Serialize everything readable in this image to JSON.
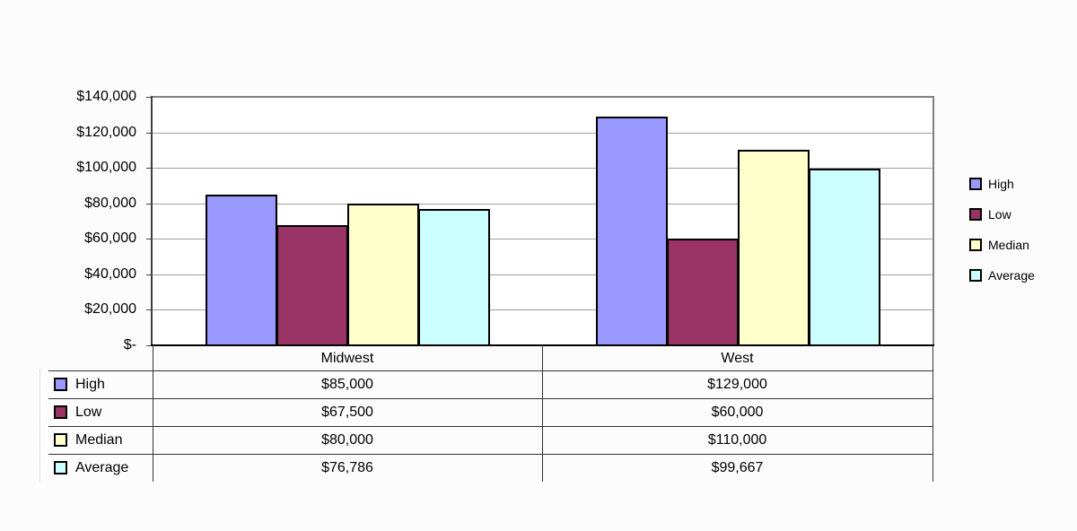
{
  "chart_data": {
    "type": "bar",
    "title": "",
    "categories": [
      "Midwest",
      "West"
    ],
    "series": [
      {
        "name": "High",
        "values": [
          85000,
          129000
        ],
        "labels": [
          "$85,000",
          "$129,000"
        ],
        "color": "#9999FF",
        "pattern": "none"
      },
      {
        "name": "Low",
        "values": [
          67500,
          60000
        ],
        "labels": [
          "$67,500",
          "$60,000"
        ],
        "color": "#993366",
        "pattern": "dots"
      },
      {
        "name": "Median",
        "values": [
          80000,
          110000
        ],
        "labels": [
          "$80,000",
          "$110,000"
        ],
        "color": "#FFFFCC",
        "pattern": "dots-faint"
      },
      {
        "name": "Average",
        "values": [
          76786,
          99667
        ],
        "labels": [
          "$76,786",
          "$99,667"
        ],
        "color": "#CCFFFF",
        "pattern": "hatch-faint"
      }
    ],
    "y_axis": {
      "min": 0,
      "max": 140000,
      "step": 20000,
      "tick_labels": [
        "$-",
        "$20,000",
        "$40,000",
        "$60,000",
        "$80,000",
        "$100,000",
        "$120,000",
        "$140,000"
      ]
    },
    "legend": {
      "position": "right",
      "items": [
        "High",
        "Low",
        "Median",
        "Average"
      ]
    },
    "grid": true,
    "data_table_shown": true
  },
  "colors": {
    "background": "#FCFCFC",
    "plot_background": "#FFFFFF",
    "plot_border": "#808080",
    "gridline": "#9E9E9E",
    "value_axis": "#3F3F3F",
    "category_axis": "#000000",
    "table_line": "#333333",
    "series_high": "#9999FF",
    "series_low": "#993366",
    "series_median": "#FFFFCC",
    "series_average": "#CCFFFF"
  }
}
